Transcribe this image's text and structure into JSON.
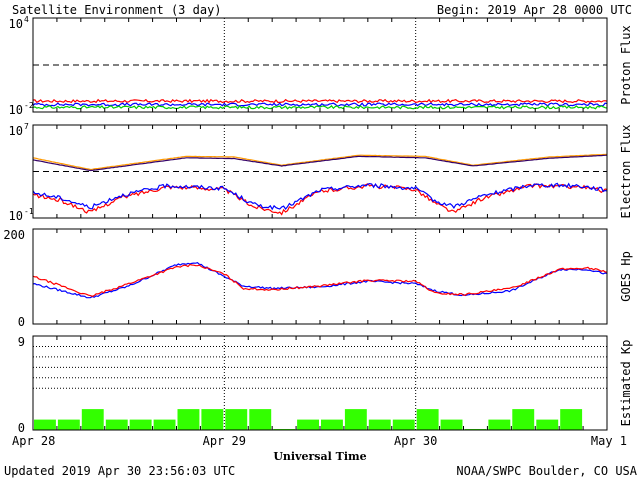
{
  "header": {
    "title": "Satellite Environment (3 day)",
    "begin": "Begin:  2019 Apr 28 0000 UTC"
  },
  "footer": {
    "updated": "Updated 2019 Apr 30 23:56:03 UTC",
    "credit": "NOAA/SWPC Boulder, CO USA"
  },
  "xaxis": {
    "label": "Universal Time",
    "ticks": [
      "Apr 28",
      "Apr 29",
      "Apr 30",
      "May 1"
    ]
  },
  "colors": {
    "red": "#ff0000",
    "blue": "#0000ff",
    "green": "#00cc00",
    "orange": "#ff9900",
    "purple": "#330066",
    "kp_bar": "#33ff00"
  },
  "chart_data": [
    {
      "type": "line",
      "ylabel": "Proton Flux",
      "yscale": "log",
      "ylim": [
        0.01,
        10000
      ],
      "ytick_labels": [
        {
          "base": "10",
          "exp": "4"
        },
        {
          "base": "10",
          "exp": "-2"
        }
      ],
      "threshold": 10,
      "x_range_days": [
        0,
        3
      ],
      "series": [
        {
          "color": "red",
          "values": [
            0.05,
            0.05,
            0.05,
            0.05,
            0.05,
            0.05,
            0.05
          ]
        },
        {
          "color": "blue",
          "values": [
            0.03,
            0.03,
            0.03,
            0.03,
            0.03,
            0.03,
            0.03
          ]
        },
        {
          "color": "green",
          "values": [
            0.02,
            0.02,
            0.02,
            0.02,
            0.02,
            0.02,
            0.02
          ]
        }
      ]
    },
    {
      "type": "line",
      "ylabel": "Electron Flux",
      "yscale": "log",
      "ylim": [
        0.1,
        10000000
      ],
      "ytick_labels": [
        {
          "base": "10",
          "exp": "7"
        },
        {
          "base": "10",
          "exp": "-1"
        }
      ],
      "threshold": 1000,
      "x_range_days": [
        0,
        3
      ],
      "series": [
        {
          "color": "orange",
          "x": [
            0,
            0.3,
            0.8,
            1.05,
            1.3,
            1.7,
            2.05,
            2.3,
            2.7,
            3.0
          ],
          "values": [
            15000,
            1500,
            20000,
            18000,
            3500,
            25000,
            20000,
            3500,
            18000,
            30000
          ]
        },
        {
          "color": "purple",
          "x": [
            0,
            0.3,
            0.8,
            1.05,
            1.3,
            1.7,
            2.05,
            2.3,
            2.7,
            3.0
          ],
          "values": [
            10000,
            1200,
            15000,
            13000,
            3000,
            20000,
            15000,
            3000,
            14000,
            25000
          ]
        },
        {
          "color": "red",
          "x": [
            0,
            0.15,
            0.3,
            0.45,
            0.7,
            1.0,
            1.15,
            1.3,
            1.5,
            1.75,
            2.0,
            2.1,
            2.2,
            2.35,
            2.6,
            2.85,
            3.0
          ],
          "values": [
            10,
            3,
            0.3,
            5,
            50,
            30,
            1,
            0.3,
            20,
            60,
            30,
            2,
            0.3,
            5,
            60,
            50,
            20
          ]
        },
        {
          "color": "blue",
          "x": [
            0,
            0.15,
            0.3,
            0.45,
            0.7,
            1.0,
            1.15,
            1.3,
            1.5,
            1.75,
            2.0,
            2.1,
            2.2,
            2.35,
            2.6,
            2.85,
            3.0
          ],
          "values": [
            15,
            5,
            0.8,
            8,
            60,
            35,
            1.5,
            0.6,
            25,
            70,
            35,
            3,
            1,
            8,
            70,
            60,
            25
          ]
        }
      ]
    },
    {
      "type": "line",
      "ylabel": "GOES Hp",
      "yscale": "linear",
      "ylim": [
        0,
        200
      ],
      "ytick_labels": [
        "200",
        "0"
      ],
      "x_range_days": [
        0,
        3
      ],
      "series": [
        {
          "color": "blue",
          "x": [
            0,
            0.15,
            0.3,
            0.5,
            0.75,
            0.85,
            1.0,
            1.1,
            1.25,
            1.5,
            1.75,
            2.0,
            2.1,
            2.25,
            2.5,
            2.75,
            2.9,
            3.0
          ],
          "values": [
            85,
            70,
            55,
            80,
            125,
            130,
            100,
            80,
            75,
            78,
            90,
            85,
            70,
            60,
            70,
            115,
            115,
            105
          ]
        },
        {
          "color": "red",
          "x": [
            0,
            0.15,
            0.3,
            0.5,
            0.75,
            0.85,
            1.0,
            1.1,
            1.25,
            1.5,
            1.75,
            2.0,
            2.1,
            2.25,
            2.5,
            2.75,
            2.9,
            3.0
          ],
          "values": [
            100,
            80,
            58,
            85,
            120,
            125,
            105,
            75,
            72,
            80,
            92,
            90,
            65,
            62,
            75,
            115,
            118,
            110
          ]
        }
      ]
    },
    {
      "type": "bar",
      "ylabel": "Estimated Kp",
      "ylim": [
        0,
        9
      ],
      "ytick_labels": [
        "9",
        "0"
      ],
      "gridlines": [
        4,
        5,
        6,
        7,
        8,
        9
      ],
      "bar_width_days": 0.125,
      "values": [
        1,
        1,
        2,
        1,
        1,
        1,
        2,
        2,
        2,
        2,
        0.1,
        1,
        1,
        2,
        1,
        1,
        2,
        1,
        0.1,
        1,
        2,
        1,
        2,
        0
      ]
    }
  ]
}
